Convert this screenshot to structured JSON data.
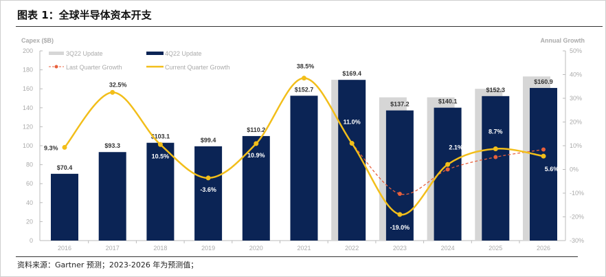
{
  "title": "图表 1：全球半导体资本开支",
  "source": "资料来源：Gartner 预测；2023-2026 年为预测值；",
  "chart_data": {
    "type": "bar",
    "categories": [
      "2016",
      "2017",
      "2018",
      "2019",
      "2020",
      "2021",
      "2022",
      "2023",
      "2024",
      "2025",
      "2026"
    ],
    "ylabel": "Capex ($B)",
    "y2label": "Annual Growth",
    "ylim": [
      0,
      200
    ],
    "yticks": [
      "0",
      "20",
      "40",
      "60",
      "80",
      "100",
      "120",
      "140",
      "160",
      "180",
      "200"
    ],
    "y2lim": [
      -30,
      50
    ],
    "y2ticks": [
      "-30%",
      "-20%",
      "-10%",
      "0%",
      "10%",
      "20%",
      "30%",
      "40%",
      "50%"
    ],
    "legend": [
      "3Q22 Update",
      "4Q22 Update",
      "Last Quarter Growth",
      "Current Quarter Growth"
    ],
    "series": [
      {
        "name": "3Q22 Update",
        "type": "bar",
        "values": [
          null,
          null,
          null,
          null,
          null,
          null,
          169.5,
          151,
          151,
          160,
          173
        ]
      },
      {
        "name": "4Q22 Update",
        "type": "bar",
        "values": [
          70.4,
          93.3,
          103.1,
          99.4,
          110.2,
          152.7,
          169.4,
          137.2,
          140.1,
          152.3,
          160.9
        ],
        "labels": [
          "$70.4",
          "$93.3",
          "$103.1",
          "$99.4",
          "$110.2",
          "$152.7",
          "$169.4",
          "$137.2",
          "$140.1",
          "$152.3",
          "$160.9"
        ]
      },
      {
        "name": "Last Quarter Growth",
        "type": "line",
        "axis": "right",
        "values": [
          null,
          null,
          null,
          null,
          null,
          null,
          11,
          -10.3,
          0,
          5.2,
          8.4
        ]
      },
      {
        "name": "Current Quarter Growth",
        "type": "line",
        "axis": "right",
        "values": [
          9.3,
          32.5,
          10.5,
          -3.6,
          10.9,
          38.5,
          11.0,
          -19.0,
          2.1,
          8.7,
          5.6
        ],
        "labels": [
          "9.3%",
          "32.5%",
          "10.5%",
          "-3.6%",
          "10.9%",
          "38.5%",
          "11.0%",
          "-19.0%",
          "2.1%",
          "8.7%",
          "5.6%"
        ]
      }
    ],
    "colors": {
      "navy": "#0b2455",
      "gray": "#d6d6d6",
      "gold": "#f2be1a",
      "red": "#e8603c"
    }
  }
}
